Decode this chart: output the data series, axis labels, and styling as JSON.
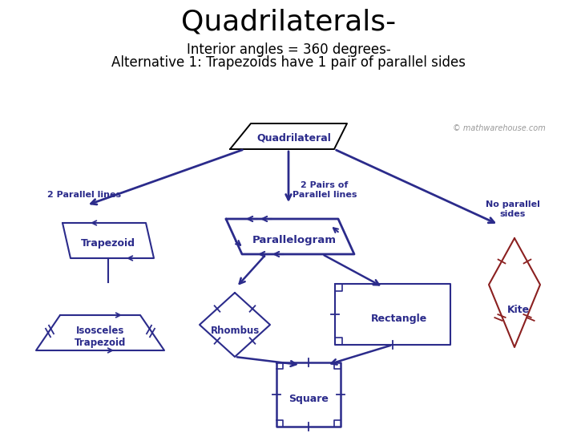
{
  "title": "Quadrilaterals-",
  "subtitle1": "Interior angles = 360 degrees-",
  "subtitle2": "Alternative 1: Trapezoids have 1 pair of parallel sides",
  "title_fontsize": 26,
  "subtitle_fontsize": 12,
  "dark_purple": "#2B2B8B",
  "dark_red": "#8B2020",
  "bg_color": "#FFFFFF",
  "watermark": "© mathwarehouse.com"
}
